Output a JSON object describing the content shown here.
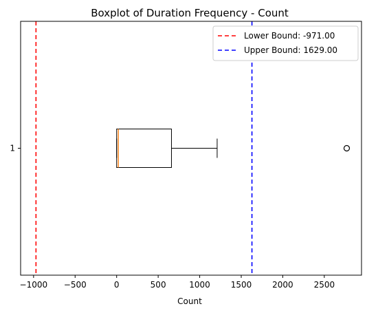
{
  "chart_data": {
    "type": "box",
    "title": "Boxplot of Duration Frequency - Count",
    "xlabel": "Count",
    "ylabel": "",
    "orientation": "horizontal",
    "xlim": [
      -1156,
      2948
    ],
    "xticks": [
      -1000,
      -500,
      0,
      500,
      1000,
      1500,
      2000,
      2500
    ],
    "xtick_labels": [
      "−1000",
      "−500",
      "0",
      "500",
      "1000",
      "1500",
      "2000",
      "2500"
    ],
    "ytick_labels": [
      "1"
    ],
    "boxes": [
      {
        "category": "1",
        "whisker_low": 0,
        "q1": 0,
        "median": 20,
        "q3": 660,
        "whisker_high": 1210,
        "outliers": [
          2770
        ]
      }
    ],
    "reference_lines": [
      {
        "label": "Lower Bound: -971.00",
        "value": -971,
        "color": "#ff0000",
        "style": "dashed"
      },
      {
        "label": "Upper Bound: 1629.00",
        "value": 1629,
        "color": "#0000ff",
        "style": "dashed"
      }
    ],
    "legend_position": "top-right",
    "grid": false,
    "colors": {
      "box": "#000000",
      "median": "#ff7f0e"
    }
  }
}
